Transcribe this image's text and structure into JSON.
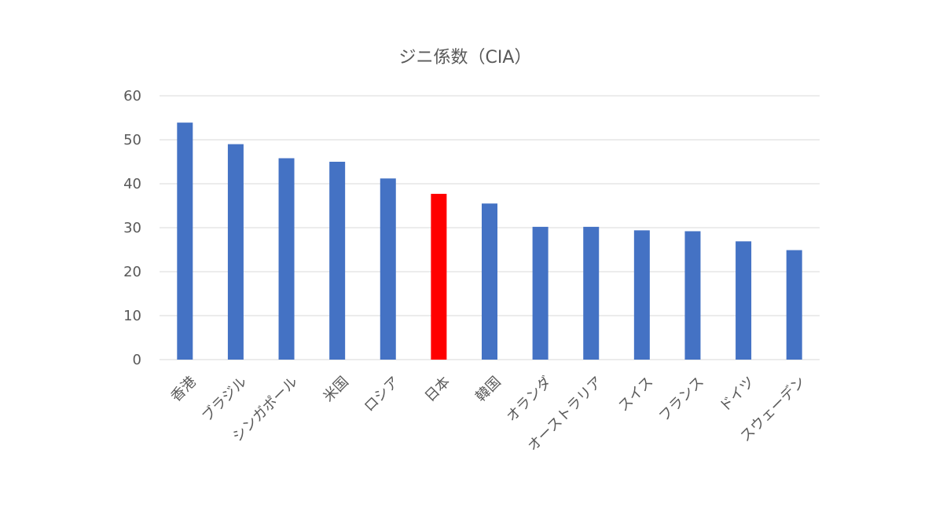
{
  "chart_data": {
    "type": "bar",
    "title": "ジニ係数（CIA）",
    "xlabel": "",
    "ylabel": "",
    "ylim": [
      0,
      60
    ],
    "yticks": [
      0,
      10,
      20,
      30,
      40,
      50,
      60
    ],
    "grid": true,
    "legend": "none",
    "categories": [
      "香港",
      "ブラジル",
      "シンガポール",
      "米国",
      "ロシア",
      "日本",
      "韓国",
      "オランダ",
      "オーストラリア",
      "スイス",
      "フランス",
      "ドイツ",
      "スウェーデン"
    ],
    "values": [
      53.9,
      49.0,
      45.8,
      45.0,
      41.2,
      37.7,
      35.5,
      30.2,
      30.2,
      29.4,
      29.2,
      26.9,
      24.9
    ],
    "bar_color": "#4472C4",
    "highlight": {
      "category": "日本",
      "color": "#FF0000"
    },
    "grid_color": "#D9D9D9",
    "text_color": "#595959"
  }
}
